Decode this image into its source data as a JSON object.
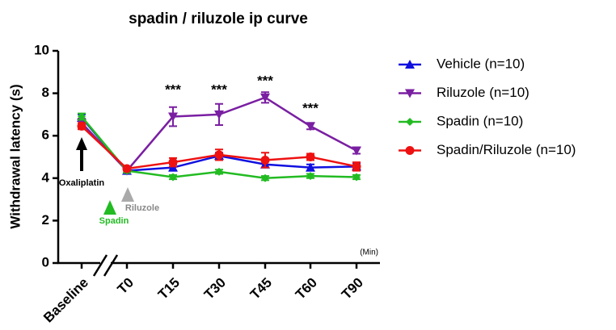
{
  "chart_data": {
    "type": "line",
    "title": "spadin / riluzole ip curve",
    "y_label": "Withdrawal latency (s)",
    "x_unit_label": "(Min)",
    "categories": [
      "Baseline",
      "T0",
      "T15",
      "T30",
      "T45",
      "T60",
      "T90"
    ],
    "ylim": [
      0,
      10
    ],
    "yticks": [
      0,
      2,
      4,
      6,
      8,
      10
    ],
    "series": [
      {
        "name": "Vehicle (n=10)",
        "color": "#1010e0",
        "marker": "triangle-up",
        "values": [
          6.85,
          4.35,
          4.5,
          5.05,
          4.65,
          4.5,
          4.55
        ],
        "errors": [
          0.15,
          0.1,
          0.15,
          0.15,
          0.15,
          0.15,
          0.15
        ]
      },
      {
        "name": "Riluzole (n=10)",
        "color": "#7a1fa2",
        "marker": "triangle-down",
        "values": [
          6.6,
          4.35,
          6.9,
          7.0,
          7.8,
          6.45,
          5.3
        ],
        "errors": [
          0.2,
          0.1,
          0.45,
          0.5,
          0.25,
          0.15,
          0.15
        ]
      },
      {
        "name": "Spadin (n=10)",
        "color": "#22bb22",
        "marker": "diamond",
        "values": [
          6.9,
          4.35,
          4.05,
          4.3,
          4.0,
          4.1,
          4.05
        ],
        "errors": [
          0.15,
          0.1,
          0.1,
          0.1,
          0.1,
          0.1,
          0.1
        ]
      },
      {
        "name": "Spadin/Riluzole (n=10)",
        "color": "#ee1111",
        "marker": "circle",
        "values": [
          6.45,
          4.45,
          4.75,
          5.1,
          4.85,
          5.0,
          4.55
        ],
        "errors": [
          0.15,
          0.1,
          0.2,
          0.25,
          0.35,
          0.15,
          0.2
        ]
      }
    ],
    "significance": [
      "***",
      "***",
      "***",
      "***"
    ],
    "treatments": {
      "oxaliplatin": "Oxaliplatin",
      "spadin": "Spadin",
      "riluzole": "Riluzole"
    }
  }
}
